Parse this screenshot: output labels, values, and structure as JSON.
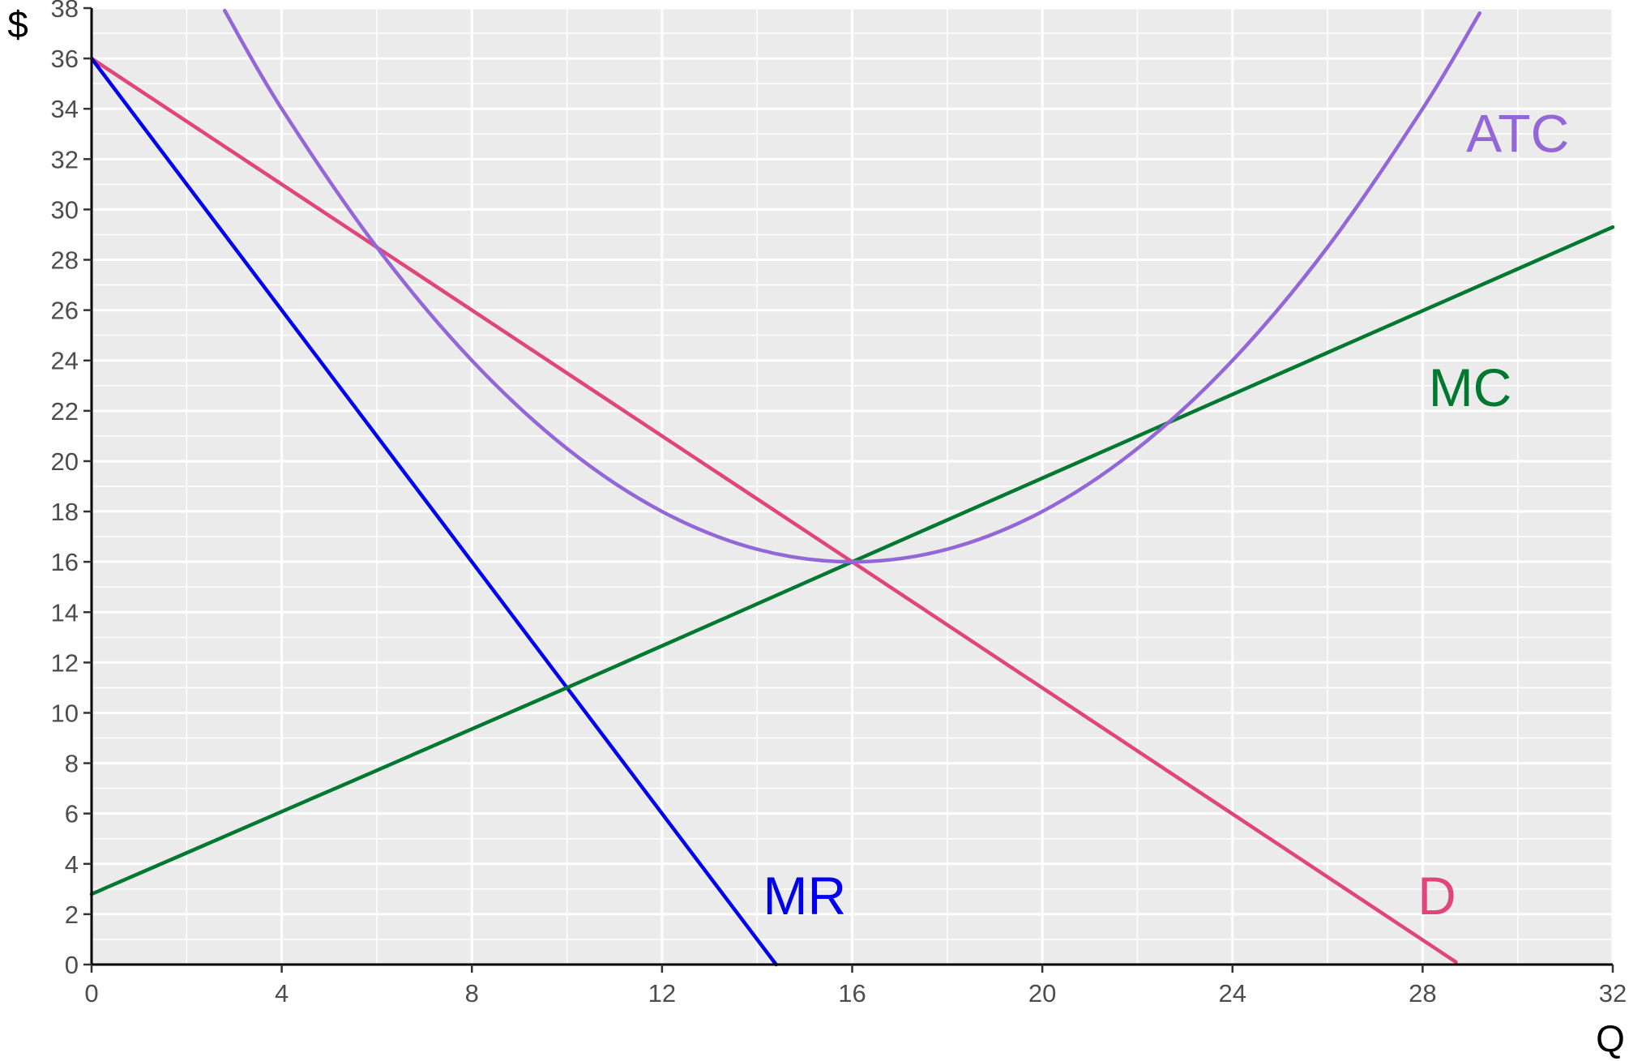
{
  "chart_data": {
    "type": "line",
    "title": "",
    "xlabel": "Q",
    "ylabel": "$",
    "xlim": [
      0,
      32
    ],
    "ylim": [
      0,
      38
    ],
    "x_ticks": [
      0,
      4,
      8,
      12,
      16,
      20,
      24,
      28,
      32
    ],
    "y_ticks": [
      0,
      2,
      4,
      6,
      8,
      10,
      12,
      14,
      16,
      18,
      20,
      22,
      24,
      26,
      28,
      30,
      32,
      34,
      36,
      38
    ],
    "grid": true,
    "legend": "none",
    "series": [
      {
        "name": "D",
        "color": "#e0457b",
        "x": [
          0,
          16,
          28.7
        ],
        "y": [
          36,
          16,
          0.1
        ],
        "label": {
          "text": "D",
          "x": 28.3,
          "y": 2.7
        }
      },
      {
        "name": "MR",
        "color": "#0000ee",
        "x": [
          0,
          10,
          14.4
        ],
        "y": [
          36,
          11,
          0
        ],
        "label": {
          "text": "MR",
          "x": 15.0,
          "y": 2.7
        }
      },
      {
        "name": "MC",
        "color": "#00782f",
        "x": [
          0,
          10,
          16,
          32
        ],
        "y": [
          2.8,
          11,
          16,
          29.3
        ],
        "label": {
          "text": "MC",
          "x": 29.0,
          "y": 22.9
        }
      },
      {
        "name": "ATC",
        "color": "#9467d9",
        "x": [
          2.8,
          4,
          6,
          8,
          10,
          12,
          14,
          16,
          18,
          20,
          22,
          24,
          26,
          28,
          29.2
        ],
        "y": [
          37.9,
          34,
          28.5,
          24,
          20.5,
          18,
          16.5,
          16,
          16.5,
          18,
          20.5,
          24,
          28.5,
          34,
          37.8
        ],
        "label": {
          "text": "ATC",
          "x": 30.0,
          "y": 33.0
        }
      }
    ]
  }
}
